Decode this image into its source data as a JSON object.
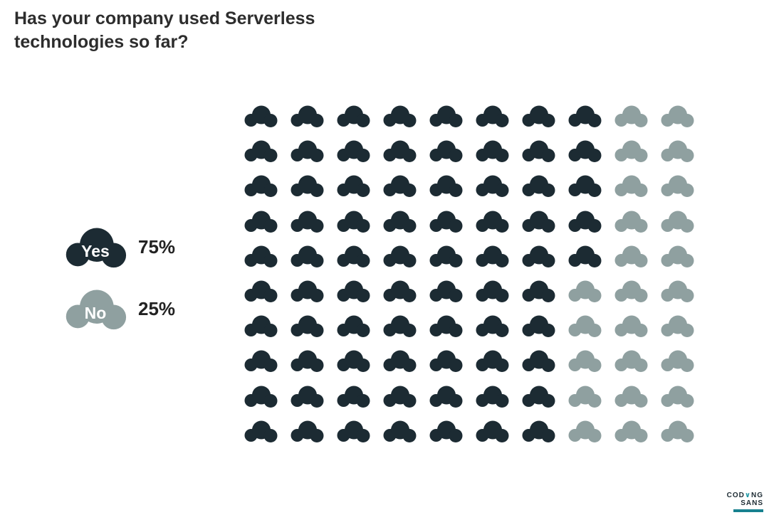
{
  "title": "Has your company used Serverless technologies so far?",
  "legend": {
    "items": [
      {
        "label": "Yes",
        "value_text": "75%"
      },
      {
        "label": "No",
        "value_text": "25%"
      }
    ]
  },
  "chart_data": {
    "type": "pictogram-waffle",
    "title": "Has your company used Serverless technologies so far?",
    "icon": "cloud",
    "grid": {
      "rows": 10,
      "cols": 10,
      "fill_order": "column-major-top-to-bottom"
    },
    "series": [
      {
        "name": "Yes",
        "value": 75,
        "unit": "%",
        "color": "#1c2b33"
      },
      {
        "name": "No",
        "value": 25,
        "unit": "%",
        "color": "#8fa0a0"
      }
    ],
    "total_icons": 100
  },
  "logo": {
    "top_left": "COD",
    "top_accent": "∨",
    "top_right": "NG",
    "bottom": "SANS",
    "accent_color": "#1d96a3",
    "bar_color": "#17818f",
    "text_color": "#1d2b33"
  }
}
